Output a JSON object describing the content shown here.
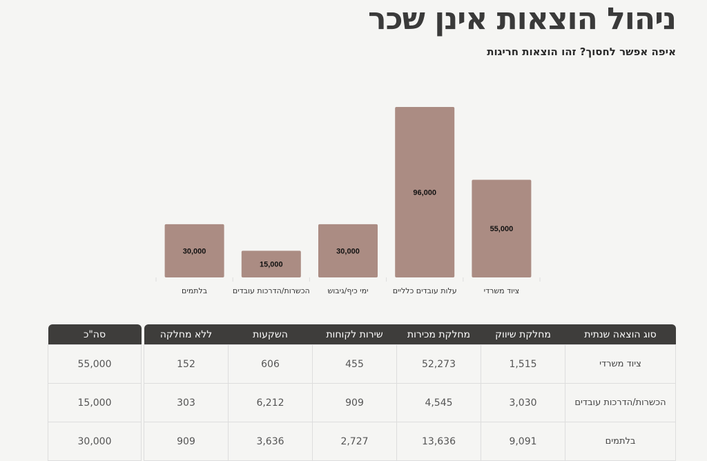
{
  "title": "ניהול הוצאות אינן שכר",
  "subtitle": "איפה אפשר לחסוך? זהו הוצאות חריגות",
  "colors": {
    "bar": "#ab8c83",
    "header": "#3e3d3b",
    "background": "#f5f5f3"
  },
  "chart_data": {
    "type": "bar",
    "categories": [
      "ציוד משרדי",
      "עלות עובדים כלליים",
      "ימי כיף/גיבוש",
      "הכשרות/הדרכות עובדים",
      "בלתמים"
    ],
    "values": [
      55000,
      96000,
      30000,
      15000,
      30000
    ],
    "value_labels": [
      "55,000",
      "96,000",
      "30,000",
      "15,000",
      "30,000"
    ],
    "title": "",
    "xlabel": "",
    "ylabel": "",
    "ylim": [
      0,
      96000
    ],
    "grid": false,
    "direction": "rtl"
  },
  "table": {
    "headers": [
      "סוג הוצאה שנתית",
      "מחלקת שיווק",
      "מחלקת מכירות",
      "שירות לקוחות",
      "השקעות",
      "ללא מחלקה"
    ],
    "total_header": "סה\"כ",
    "rows": [
      {
        "label": "ציוד משרדי",
        "cells": [
          "1,515",
          "52,273",
          "455",
          "606",
          "152"
        ],
        "total": "55,000"
      },
      {
        "label": "הכשרות/הדרכות עובדים",
        "cells": [
          "3,030",
          "4,545",
          "909",
          "6,212",
          "303"
        ],
        "total": "15,000"
      },
      {
        "label": "בלתמים",
        "cells": [
          "9,091",
          "13,636",
          "2,727",
          "3,636",
          "909"
        ],
        "total": "30,000"
      }
    ]
  }
}
